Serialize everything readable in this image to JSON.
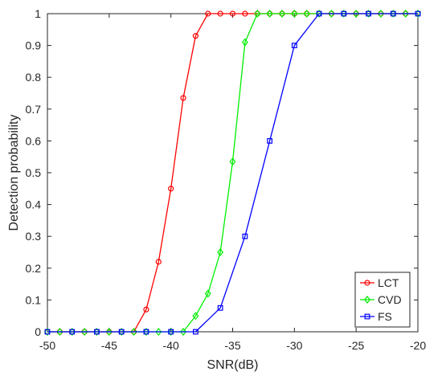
{
  "chart_data": {
    "type": "line",
    "title": "",
    "xlabel": "SNR(dB)",
    "ylabel": "Detection probability",
    "xlim": [
      -50,
      -20
    ],
    "ylim": [
      0,
      1
    ],
    "xticks": [
      -50,
      -45,
      -40,
      -35,
      -30,
      -25,
      -20
    ],
    "yticks": [
      0,
      0.1,
      0.2,
      0.3,
      0.4,
      0.5,
      0.6,
      0.7,
      0.8,
      0.9,
      1
    ],
    "grid": false,
    "legend_position": "bottom-right",
    "series": [
      {
        "name": "LCT",
        "color": "#ff0000",
        "marker": "circle",
        "x": [
          -50,
          -49,
          -48,
          -47,
          -46,
          -45,
          -44,
          -43,
          -42,
          -41,
          -40,
          -39,
          -38,
          -37,
          -36,
          -35,
          -34,
          -33,
          -32,
          -31,
          -30,
          -29,
          -28,
          -27,
          -26,
          -25,
          -24,
          -23,
          -22,
          -21,
          -20
        ],
        "y": [
          0,
          0,
          0,
          0,
          0,
          0,
          0,
          0,
          0.07,
          0.22,
          0.45,
          0.735,
          0.93,
          1,
          1,
          1,
          1,
          1,
          1,
          1,
          1,
          1,
          1,
          1,
          1,
          1,
          1,
          1,
          1,
          1,
          1
        ]
      },
      {
        "name": "CVD",
        "color": "#00ee00",
        "marker": "diamond",
        "x": [
          -50,
          -49,
          -48,
          -47,
          -46,
          -45,
          -44,
          -43,
          -42,
          -41,
          -40,
          -39,
          -38,
          -37,
          -36,
          -35,
          -34,
          -33,
          -32,
          -31,
          -30,
          -29,
          -28,
          -27,
          -26,
          -25,
          -24,
          -23,
          -22,
          -21,
          -20
        ],
        "y": [
          0,
          0,
          0,
          0,
          0,
          0,
          0,
          0,
          0,
          0,
          0,
          0,
          0.05,
          0.12,
          0.25,
          0.535,
          0.91,
          1,
          1,
          1,
          1,
          1,
          1,
          1,
          1,
          1,
          1,
          1,
          1,
          1,
          1
        ]
      },
      {
        "name": "FS",
        "color": "#0000ff",
        "marker": "square",
        "x": [
          -50,
          -48,
          -46,
          -44,
          -42,
          -40,
          -38,
          -36,
          -34,
          -32,
          -30,
          -28,
          -26,
          -24,
          -22,
          -20
        ],
        "y": [
          0,
          0,
          0,
          0,
          0,
          0,
          0,
          0.075,
          0.3,
          0.6,
          0.9,
          1,
          1,
          1,
          1,
          1
        ]
      }
    ]
  }
}
